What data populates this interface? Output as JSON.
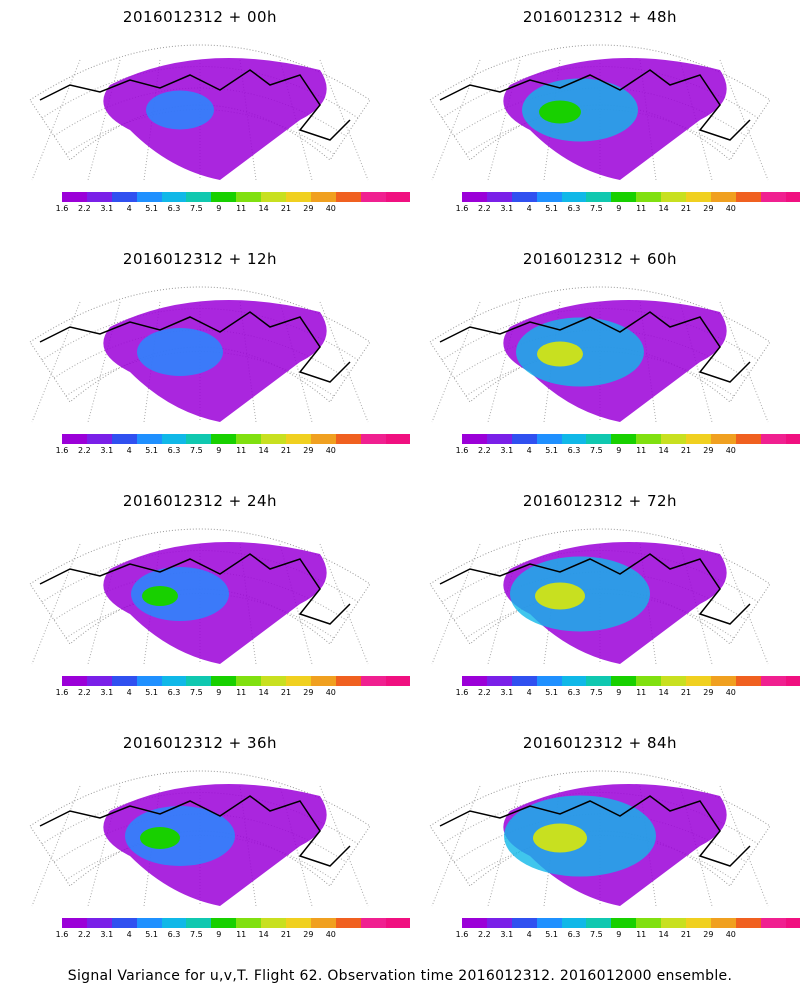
{
  "panels": [
    {
      "title": "2016012312 + 00h"
    },
    {
      "title": "2016012312 + 48h"
    },
    {
      "title": "2016012312 + 12h"
    },
    {
      "title": "2016012312 + 60h"
    },
    {
      "title": "2016012312 + 24h"
    },
    {
      "title": "2016012312 + 72h"
    },
    {
      "title": "2016012312 + 36h"
    },
    {
      "title": "2016012312 + 84h"
    }
  ],
  "colorbar": {
    "labels": [
      "1.6",
      "2.2",
      "3.1",
      "4",
      "5.1",
      "6.3",
      "7.5",
      "9",
      "11",
      "14",
      "21",
      "29",
      "40"
    ],
    "colors": [
      "#9b00d8",
      "#7a20e8",
      "#3050f0",
      "#1f90ff",
      "#10b8e8",
      "#10c8b0",
      "#18d000",
      "#80e010",
      "#c8e020",
      "#f0d020",
      "#f0a020",
      "#f06020",
      "#f02090",
      "#f01080"
    ]
  },
  "footer": "Signal Variance for u,v,T. Flight 62. Observation time 2016012312. 2016012000 ensemble."
}
